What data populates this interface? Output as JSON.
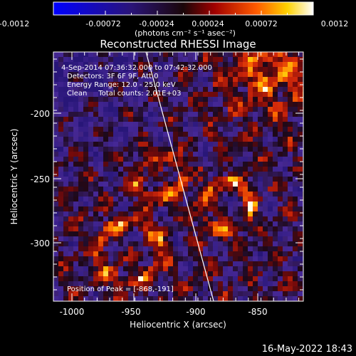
{
  "colorbar": {
    "tick_labels": [
      "-0.0012",
      "-0.00072",
      "-0.00024",
      "0.00024",
      "0.00072",
      "0.0012"
    ],
    "unit_label": "(photons cm⁻² s⁻¹ asec⁻²)",
    "range": [
      -0.0012,
      0.0012
    ]
  },
  "image": {
    "title": "Reconstructed RHESSI Image",
    "info_lines": [
      "4-Sep-2014 07:36:32.000 to 07:42:32.000",
      "Detectors: 3F 6F 9F, Att 0",
      "Energy Range: 12.0 - 25.0 keV",
      "Clean     Total counts: 2.01E+03"
    ],
    "peak_text": "Position of Peak = [-868,-191]"
  },
  "axes": {
    "xlabel": "Heliocentric X (arcsec)",
    "ylabel": "Heliocentric Y (arcsec)",
    "x_ticks": [
      "-1000",
      "-950",
      "-900",
      "-850"
    ],
    "y_ticks": [
      "-200",
      "-250",
      "-300"
    ]
  },
  "footer": {
    "timestamp": "16-May-2022 18:43"
  }
}
